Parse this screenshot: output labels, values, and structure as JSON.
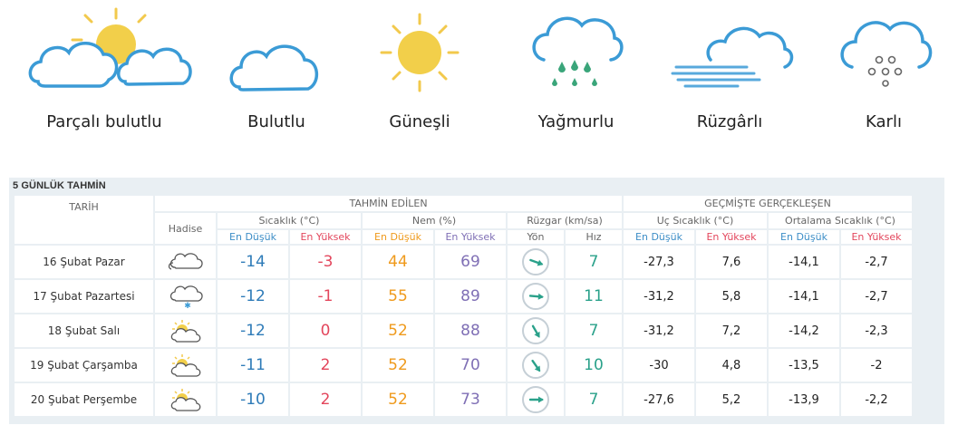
{
  "legend": [
    {
      "icon": "partly-cloudy-icon",
      "label": "Parçalı bulutlu"
    },
    {
      "icon": "cloudy-icon",
      "label": "Bulutlu"
    },
    {
      "icon": "sunny-icon",
      "label": "Güneşli"
    },
    {
      "icon": "rainy-icon",
      "label": "Yağmurlu"
    },
    {
      "icon": "windy-icon",
      "label": "Rüzgârlı"
    },
    {
      "icon": "snowy-icon",
      "label": "Karlı"
    }
  ],
  "forecast": {
    "title": "5 GÜNLÜK TAHMİN",
    "group_forecast": "TAHMİN EDİLEN",
    "group_past": "GEÇMİŞTE GERÇEKLEŞEN",
    "col_date": "TARİH",
    "col_event": "Hadise",
    "col_temp": "Sıcaklık (°C)",
    "col_humidity": "Nem (%)",
    "col_wind": "Rüzgar (km/sa)",
    "col_extreme": "Uç Sıcaklık (°C)",
    "col_avg": "Ortalama Sıcaklık (°C)",
    "sub_low": "En Düşük",
    "sub_high": "En Yüksek",
    "sub_dir": "Yön",
    "sub_speed": "Hız",
    "rows": [
      {
        "date": "16 Şubat Pazar",
        "event_icon": "cloudy-icon",
        "t_low": "-14",
        "t_high": "-3",
        "h_low": "44",
        "h_high": "69",
        "wind_dir_icon": "wind-west-icon",
        "wind_dir_deg": 200,
        "wind_speed": "7",
        "ext_low": "-27,3",
        "ext_high": "7,6",
        "avg_low": "-14,1",
        "avg_high": "-2,7"
      },
      {
        "date": "17 Şubat Pazartesi",
        "event_icon": "snowy-icon",
        "t_low": "-12",
        "t_high": "-1",
        "h_low": "55",
        "h_high": "89",
        "wind_dir_icon": "wind-west-icon",
        "wind_dir_deg": 185,
        "wind_speed": "11",
        "ext_low": "-31,2",
        "ext_high": "5,8",
        "avg_low": "-14,1",
        "avg_high": "-2,7"
      },
      {
        "date": "18 Şubat Salı",
        "event_icon": "partly-cloudy-icon",
        "t_low": "-12",
        "t_high": "0",
        "h_low": "52",
        "h_high": "88",
        "wind_dir_icon": "wind-southwest-icon",
        "wind_dir_deg": 240,
        "wind_speed": "7",
        "ext_low": "-31,2",
        "ext_high": "7,2",
        "avg_low": "-14,2",
        "avg_high": "-2,3"
      },
      {
        "date": "19 Şubat Çarşamba",
        "event_icon": "partly-cloudy-icon",
        "t_low": "-11",
        "t_high": "2",
        "h_low": "52",
        "h_high": "70",
        "wind_dir_icon": "wind-southwest-icon",
        "wind_dir_deg": 235,
        "wind_speed": "10",
        "ext_low": "-30",
        "ext_high": "4,8",
        "avg_low": "-13,5",
        "avg_high": "-2"
      },
      {
        "date": "20 Şubat Perşembe",
        "event_icon": "partly-cloudy-icon",
        "t_low": "-10",
        "t_high": "2",
        "h_low": "52",
        "h_high": "73",
        "wind_dir_icon": "wind-west-icon",
        "wind_dir_deg": 180,
        "wind_speed": "7",
        "ext_low": "-27,6",
        "ext_high": "5,2",
        "avg_low": "-13,9",
        "avg_high": "-2,2"
      }
    ]
  }
}
